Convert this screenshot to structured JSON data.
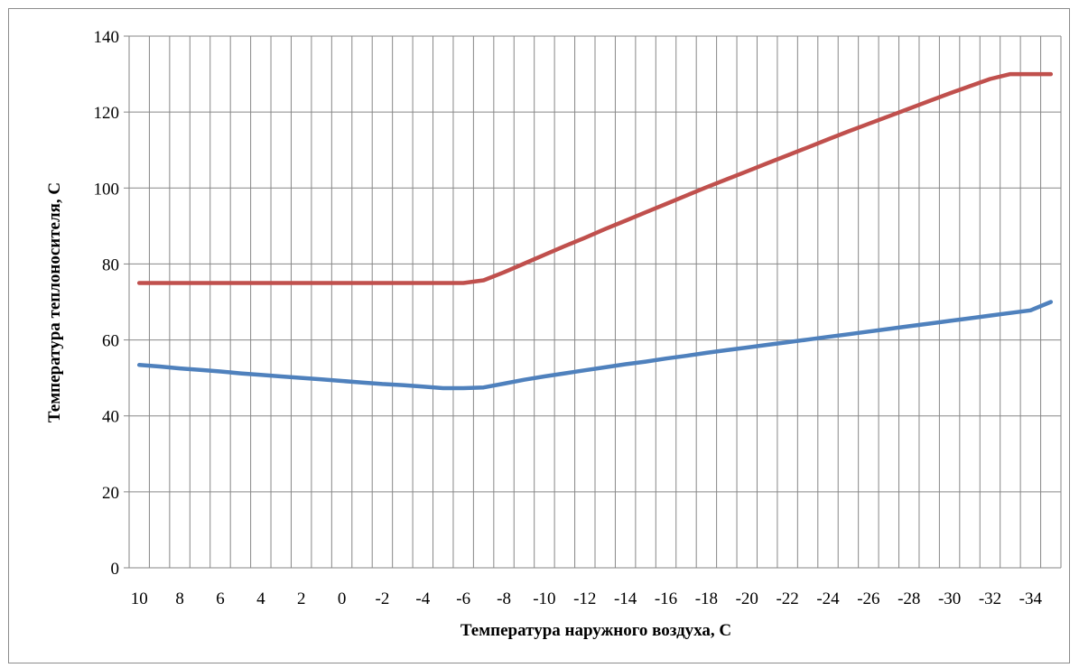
{
  "chart_data": {
    "type": "line",
    "title": "",
    "xlabel": "Температура наружного воздуха, С",
    "ylabel": "Температура теплоносителя, С",
    "ylim": [
      0,
      140
    ],
    "yticks": [
      "0",
      "20",
      "40",
      "60",
      "80",
      "100",
      "120",
      "140"
    ],
    "x": [
      10,
      9,
      8,
      7,
      6,
      5,
      4,
      3,
      2,
      1,
      0,
      -1,
      -2,
      -3,
      -4,
      -5,
      -6,
      -7,
      -8,
      -9,
      -10,
      -11,
      -12,
      -13,
      -14,
      -15,
      -16,
      -17,
      -18,
      -19,
      -20,
      -21,
      -22,
      -23,
      -24,
      -25,
      -26,
      -27,
      -28,
      -29,
      -30,
      -31,
      -32,
      -33,
      -34,
      -35
    ],
    "xtick_labels": [
      "10",
      "8",
      "6",
      "4",
      "2",
      "0",
      "-2",
      "-4",
      "-6",
      "-8",
      "-10",
      "-12",
      "-14",
      "-16",
      "-18",
      "-20",
      "-22",
      "-24",
      "-26",
      "-28",
      "-30",
      "-32",
      "-34"
    ],
    "grid": "vertical and horizontal",
    "legend": "none",
    "series": [
      {
        "color": "#c0504d",
        "values": [
          75,
          75,
          75,
          75,
          75,
          75,
          75,
          75,
          75,
          75,
          75,
          75,
          75,
          75,
          75,
          75,
          75,
          75.7,
          77.8,
          80.1,
          82.4,
          84.7,
          86.9,
          89.2,
          91.4,
          93.6,
          95.8,
          98.0,
          100.2,
          102.3,
          104.4,
          106.5,
          108.6,
          110.7,
          112.8,
          114.9,
          116.9,
          118.9,
          120.9,
          122.9,
          124.9,
          126.8,
          128.7,
          130.0,
          130.0,
          130.0
        ]
      },
      {
        "color": "#4f81bd",
        "values": [
          53.4,
          53.0,
          52.5,
          52.1,
          51.7,
          51.2,
          50.8,
          50.4,
          50.0,
          49.6,
          49.2,
          48.8,
          48.4,
          48.1,
          47.7,
          47.3,
          47.3,
          47.5,
          48.5,
          49.5,
          50.4,
          51.2,
          52.0,
          52.8,
          53.6,
          54.3,
          55.1,
          55.8,
          56.6,
          57.3,
          58.0,
          58.7,
          59.4,
          60.1,
          60.8,
          61.5,
          62.2,
          62.9,
          63.6,
          64.3,
          65.0,
          65.7,
          66.4,
          67.1,
          67.8,
          70.0
        ]
      }
    ]
  }
}
